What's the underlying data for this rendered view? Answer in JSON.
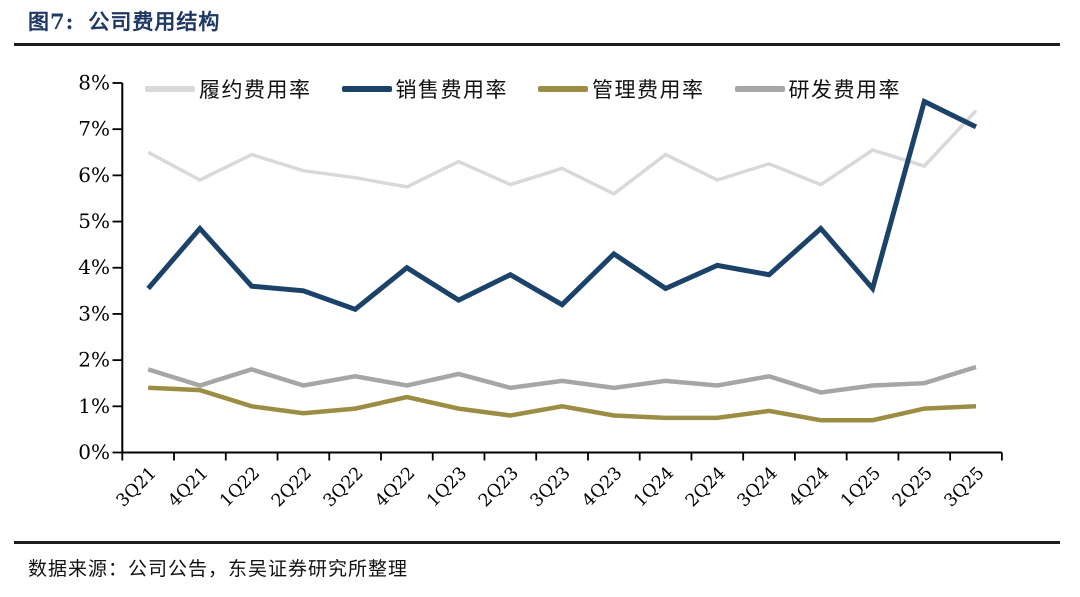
{
  "header": {
    "figure_label": "图7:",
    "title": "公司费用结构"
  },
  "footer": {
    "source": "数据来源：公司公告，东吴证券研究所整理"
  },
  "chart_data": {
    "type": "line",
    "title": "公司费用结构",
    "categories": [
      "3Q21",
      "4Q21",
      "1Q22",
      "2Q22",
      "3Q22",
      "4Q22",
      "1Q23",
      "2Q23",
      "3Q23",
      "4Q23",
      "1Q24",
      "2Q24",
      "3Q24",
      "4Q24",
      "1Q25",
      "2Q25",
      "3Q25"
    ],
    "series": [
      {
        "name": "履约费用率",
        "color": "#D9D9D9",
        "values": [
          6.5,
          5.9,
          6.45,
          6.1,
          5.95,
          5.75,
          6.3,
          5.8,
          6.15,
          5.6,
          6.45,
          5.9,
          6.25,
          5.8,
          6.55,
          6.2,
          7.4
        ]
      },
      {
        "name": "销售费用率",
        "color": "#1B4268",
        "values": [
          3.55,
          4.85,
          3.6,
          3.5,
          3.1,
          4.0,
          3.3,
          3.85,
          3.2,
          4.3,
          3.55,
          4.05,
          3.85,
          4.85,
          3.55,
          7.6,
          7.05
        ]
      },
      {
        "name": "管理费用率",
        "color": "#9C8D44",
        "values": [
          1.4,
          1.35,
          1.0,
          0.85,
          0.95,
          1.2,
          0.95,
          0.8,
          1.0,
          0.8,
          0.75,
          0.75,
          0.9,
          0.7,
          0.7,
          0.95,
          1.0
        ]
      },
      {
        "name": "研发费用率",
        "color": "#A6A6A6",
        "values": [
          1.8,
          1.45,
          1.8,
          1.45,
          1.65,
          1.45,
          1.7,
          1.4,
          1.55,
          1.4,
          1.55,
          1.45,
          1.65,
          1.3,
          1.45,
          1.5,
          1.85
        ]
      }
    ],
    "xlabel": "",
    "ylabel": "",
    "ylim": [
      0,
      8
    ],
    "ytick_step": 1,
    "ytick_suffix": "%",
    "grid": false,
    "legend_position": "top"
  }
}
